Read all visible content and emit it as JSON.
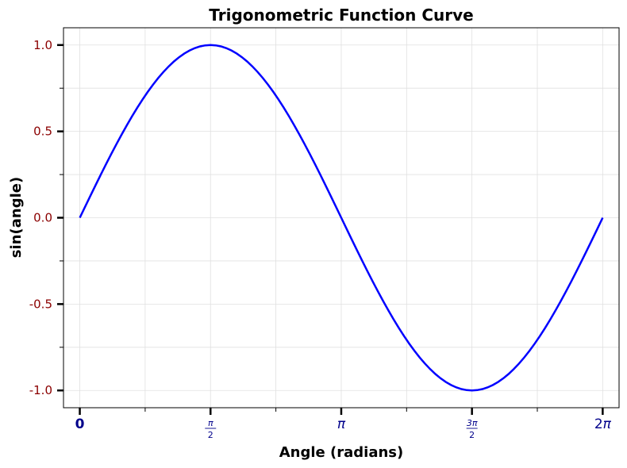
{
  "chart_data": {
    "type": "line",
    "title": "Trigonometric Function Curve",
    "xlabel": "Angle (radians)",
    "ylabel": "sin(angle)",
    "xlim": [
      -0.196,
      6.48
    ],
    "ylim": [
      -1.1,
      1.1
    ],
    "grid": true,
    "x_ticks": [
      {
        "value": 0,
        "label": "0",
        "kind": "plain"
      },
      {
        "value": 1.5708,
        "num": "π",
        "den": "2",
        "kind": "frac"
      },
      {
        "value": 3.1416,
        "label": "π",
        "kind": "italic"
      },
      {
        "value": 4.7124,
        "num": "3π",
        "den": "2",
        "kind": "frac"
      },
      {
        "value": 6.2832,
        "label": "2π",
        "kind": "mixed"
      }
    ],
    "x_minor_ticks": [
      0.7854,
      2.3562,
      3.927,
      5.4978
    ],
    "y_ticks": [
      {
        "value": 1.0,
        "label": "1.0"
      },
      {
        "value": 0.5,
        "label": "0.5"
      },
      {
        "value": 0.0,
        "label": "0.0"
      },
      {
        "value": -0.5,
        "label": "-0.5"
      },
      {
        "value": -1.0,
        "label": "-1.0"
      }
    ],
    "y_minor_ticks": [
      0.75,
      0.25,
      -0.25,
      -0.75
    ],
    "series": [
      {
        "function": "sin",
        "color": "#0000ff",
        "x_range": [
          0,
          6.2832
        ],
        "samples": 100
      }
    ]
  }
}
